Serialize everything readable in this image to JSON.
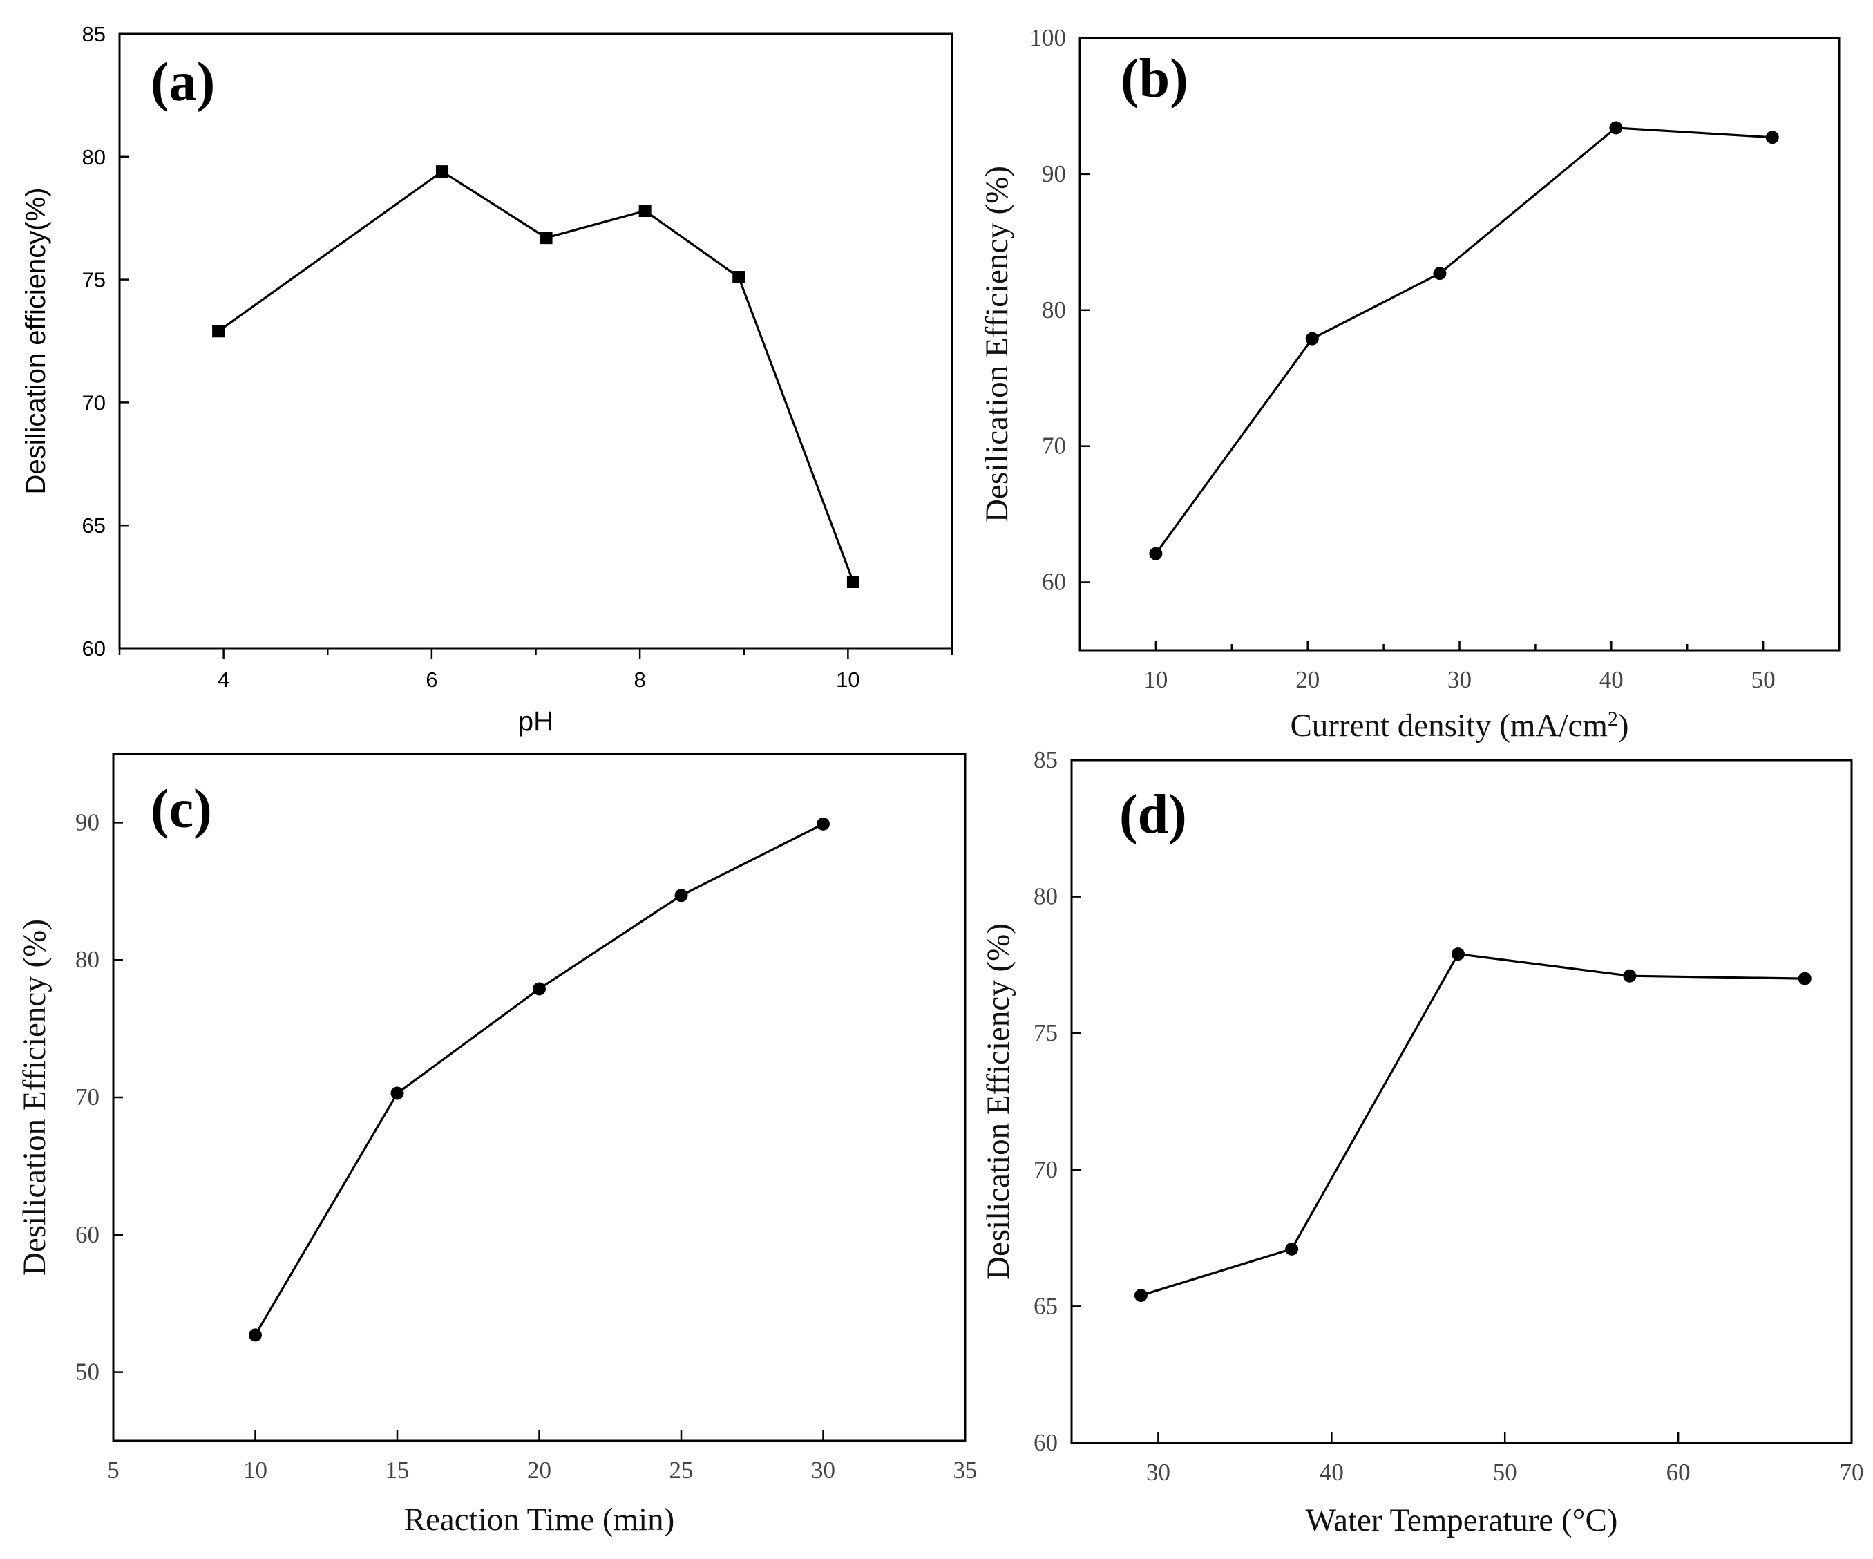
{
  "chart_data": [
    {
      "id": "a",
      "type": "line",
      "panel_label": "(a)",
      "marker": "square",
      "font": "sans",
      "xlabel": "pH",
      "ylabel": "Desilication efficiency(%)",
      "xlim": [
        3,
        11
      ],
      "ylim": [
        60,
        85
      ],
      "xticks": [
        4,
        6,
        8,
        10
      ],
      "xminor": [
        3,
        5,
        7,
        9,
        11
      ],
      "yticks": [
        60,
        65,
        70,
        75,
        80,
        85
      ],
      "x": [
        3.95,
        6.1,
        7.1,
        8.05,
        8.95,
        10.05
      ],
      "y": [
        72.9,
        79.4,
        76.7,
        77.8,
        75.1,
        62.7
      ]
    },
    {
      "id": "b",
      "type": "line",
      "panel_label": "(b)",
      "marker": "circle",
      "font": "serif",
      "xlabel": "Current density (mA/cm",
      "xlabel_sup": "2",
      "xlabel_end": ")",
      "ylabel": "Desilication Efficiency (%)",
      "xlim": [
        5,
        55
      ],
      "ylim": [
        55,
        100
      ],
      "xticks": [
        10,
        20,
        30,
        40,
        50
      ],
      "xminor": [
        15,
        25,
        35,
        45
      ],
      "yticks": [
        60,
        70,
        80,
        90,
        100
      ],
      "x": [
        10,
        20.3,
        28.7,
        40.3,
        50.6
      ],
      "y": [
        62.1,
        77.9,
        82.7,
        93.4,
        92.7
      ]
    },
    {
      "id": "c",
      "type": "line",
      "panel_label": "(c)",
      "marker": "circle",
      "font": "serif",
      "xlabel": "Reaction Time (min)",
      "ylabel": "Desilication Efficiency (%)",
      "xlim": [
        5,
        35
      ],
      "ylim": [
        45,
        95
      ],
      "xticks": [
        5,
        10,
        15,
        20,
        25,
        30,
        35
      ],
      "xminor": [],
      "yticks": [
        50,
        60,
        70,
        80,
        90
      ],
      "x": [
        10,
        15,
        20,
        25,
        30
      ],
      "y": [
        52.7,
        70.3,
        77.9,
        84.7,
        89.9
      ]
    },
    {
      "id": "d",
      "type": "line",
      "panel_label": "(d)",
      "marker": "circle",
      "font": "serif",
      "xlabel": "Water Temperature (°C)",
      "ylabel": "Desilication Efficiency (%)",
      "xlim": [
        25,
        70
      ],
      "ylim": [
        60,
        85
      ],
      "xticks": [
        30,
        40,
        50,
        60,
        70
      ],
      "xminor": [],
      "yticks": [
        60,
        65,
        70,
        75,
        80,
        85
      ],
      "x": [
        29,
        37.7,
        47.3,
        57.2,
        67.3
      ],
      "y": [
        65.4,
        67.1,
        77.9,
        77.1,
        77
      ]
    }
  ]
}
